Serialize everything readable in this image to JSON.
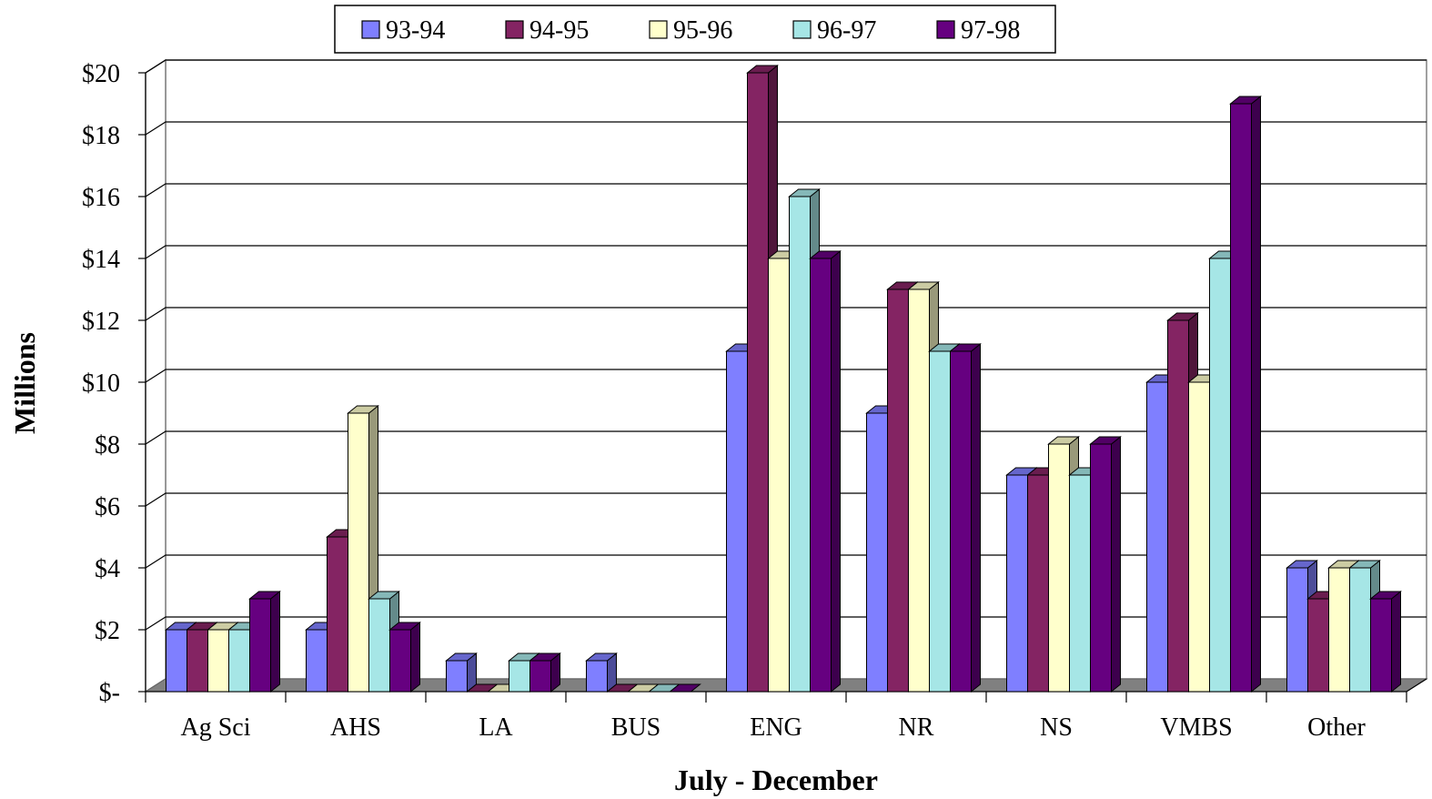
{
  "chart_data": {
    "type": "bar",
    "style": "3d-clustered-column",
    "categories": [
      "Ag Sci",
      "AHS",
      "LA",
      "BUS",
      "ENG",
      "NR",
      "NS",
      "VMBS",
      "Other"
    ],
    "series": [
      {
        "name": "93-94",
        "color": "#7f7fff",
        "values": [
          2,
          2,
          1,
          1,
          11,
          9,
          7,
          10,
          4
        ]
      },
      {
        "name": "94-95",
        "color": "#842463",
        "values": [
          2,
          5,
          0,
          0,
          20,
          13,
          7,
          12,
          3
        ]
      },
      {
        "name": "95-96",
        "color": "#ffffcc",
        "values": [
          2,
          9,
          0,
          0,
          14,
          13,
          8,
          10,
          4
        ]
      },
      {
        "name": "96-97",
        "color": "#a6e6e6",
        "values": [
          2,
          3,
          1,
          0,
          16,
          11,
          7,
          14,
          4
        ]
      },
      {
        "name": "97-98",
        "color": "#660080",
        "values": [
          3,
          2,
          1,
          0,
          14,
          11,
          8,
          19,
          3
        ]
      }
    ],
    "y_ticks": [
      "$-",
      "$2",
      "$4",
      "$6",
      "$8",
      "$10",
      "$12",
      "$14",
      "$16",
      "$18",
      "$20"
    ],
    "ylim": [
      0,
      20
    ],
    "xlabel": "July - December",
    "ylabel": "Millions",
    "grid": true,
    "legend": "top-center"
  }
}
